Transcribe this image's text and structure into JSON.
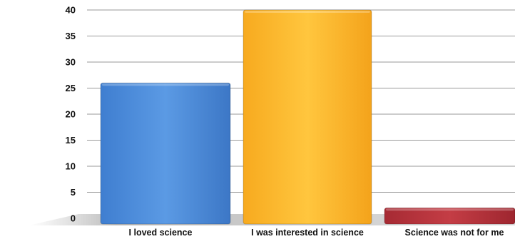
{
  "chart_data": {
    "type": "bar",
    "title": "",
    "xlabel": "",
    "ylabel": "",
    "ylim": [
      0,
      40
    ],
    "yticks": [
      0,
      5,
      10,
      15,
      20,
      25,
      30,
      35,
      40
    ],
    "grid": true,
    "categories": [
      "I loved science",
      "I was interested in science",
      "Science was not for me"
    ],
    "values": [
      26,
      40,
      2
    ],
    "colors": [
      "#4a8ad8",
      "#fcb52a",
      "#b3323a"
    ]
  }
}
